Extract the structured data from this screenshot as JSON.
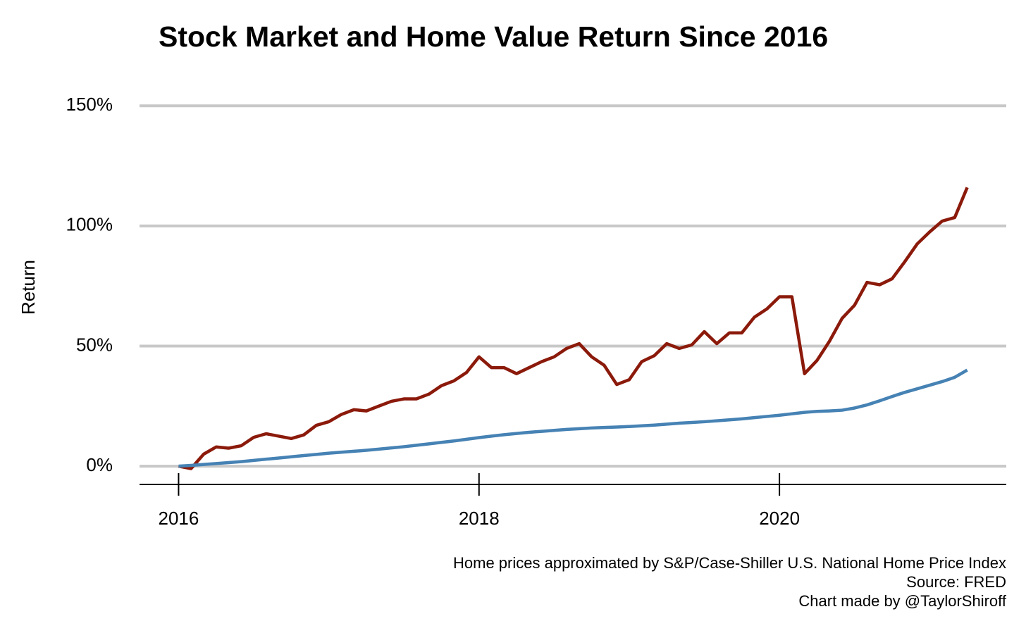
{
  "chart_data": {
    "type": "line",
    "title": "Stock Market and Home Value Return Since 2016",
    "y_label": "Return",
    "notes": [
      "Home prices approximated by S&P/Case-Shiller U.S. National Home Price Index",
      "Source: FRED",
      "Chart made by @TaylorShiroff"
    ],
    "x": [
      2016,
      2016.083,
      2016.167,
      2016.25,
      2016.333,
      2016.417,
      2016.5,
      2016.583,
      2016.667,
      2016.75,
      2016.833,
      2016.917,
      2017,
      2017.083,
      2017.167,
      2017.25,
      2017.333,
      2017.417,
      2017.5,
      2017.583,
      2017.667,
      2017.75,
      2017.833,
      2017.917,
      2018,
      2018.083,
      2018.167,
      2018.25,
      2018.333,
      2018.417,
      2018.5,
      2018.583,
      2018.667,
      2018.75,
      2018.833,
      2018.917,
      2019,
      2019.083,
      2019.167,
      2019.25,
      2019.333,
      2019.417,
      2019.5,
      2019.583,
      2019.667,
      2019.75,
      2019.833,
      2019.917,
      2020,
      2020.083,
      2020.167,
      2020.25,
      2020.333,
      2020.417,
      2020.5,
      2020.583,
      2020.667,
      2020.75,
      2020.833,
      2020.917,
      2021,
      2021.083,
      2021.167,
      2021.25
    ],
    "series": [
      {
        "color": "#8b1a0b",
        "values": [
          0,
          -1,
          5,
          8,
          7.5,
          8.5,
          12,
          13.5,
          12.5,
          11.5,
          13,
          17,
          18.5,
          21.5,
          23.5,
          23,
          25,
          27,
          28,
          28,
          30,
          33.5,
          35.5,
          39,
          45.5,
          41,
          41,
          38.5,
          41,
          43.5,
          45.5,
          49,
          51,
          45.5,
          42,
          34,
          36,
          43.5,
          46,
          51,
          49,
          50.5,
          56,
          51,
          55.5,
          55.5,
          62,
          65.5,
          70.5,
          70.5,
          38.5,
          44,
          52,
          61.5,
          67,
          76.5,
          75.5,
          78,
          85,
          92.5,
          97.5,
          102,
          103.5,
          116
        ]
      },
      {
        "color": "#4682b4",
        "values": [
          0,
          0.3,
          0.7,
          1.1,
          1.5,
          1.9,
          2.4,
          2.9,
          3.4,
          3.9,
          4.4,
          4.9,
          5.4,
          5.8,
          6.2,
          6.6,
          7.1,
          7.6,
          8.1,
          8.7,
          9.3,
          9.9,
          10.5,
          11.2,
          11.9,
          12.5,
          13.1,
          13.6,
          14.1,
          14.5,
          14.9,
          15.3,
          15.6,
          15.9,
          16.1,
          16.3,
          16.5,
          16.8,
          17.1,
          17.5,
          17.9,
          18.2,
          18.5,
          18.9,
          19.3,
          19.7,
          20.2,
          20.7,
          21.2,
          21.8,
          22.4,
          22.8,
          23,
          23.3,
          24.2,
          25.5,
          27.2,
          29,
          30.7,
          32.2,
          33.7,
          35.2,
          37,
          40
        ]
      }
    ],
    "xlim": [
      2015.74,
      2021.51
    ],
    "xticks": [
      2016,
      2018,
      2020
    ],
    "ylim": [
      -7.6,
      153
    ],
    "yticks": [
      {
        "value": 0,
        "label": "0%"
      },
      {
        "value": 50,
        "label": "50%"
      },
      {
        "value": 100,
        "label": "100%"
      },
      {
        "value": 150,
        "label": "150%"
      }
    ],
    "grid": true
  }
}
